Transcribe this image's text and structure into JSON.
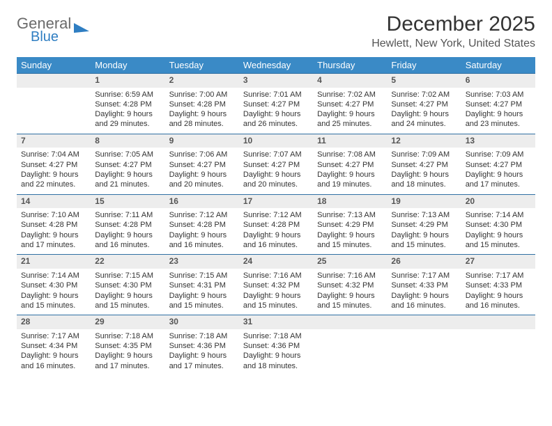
{
  "logo": {
    "word1": "General",
    "word2": "Blue"
  },
  "title": "December 2025",
  "location": "Hewlett, New York, United States",
  "colors": {
    "header_bg": "#3a8ac6",
    "brand_blue": "#2f7ec2",
    "daynum_bg": "#ededed",
    "border": "#2f6fa3"
  },
  "weekdays": [
    "Sunday",
    "Monday",
    "Tuesday",
    "Wednesday",
    "Thursday",
    "Friday",
    "Saturday"
  ],
  "weeks": [
    {
      "nums": [
        "",
        "1",
        "2",
        "3",
        "4",
        "5",
        "6"
      ],
      "cells": [
        {
          "lines": []
        },
        {
          "lines": [
            "Sunrise: 6:59 AM",
            "Sunset: 4:28 PM",
            "Daylight: 9 hours",
            "and 29 minutes."
          ]
        },
        {
          "lines": [
            "Sunrise: 7:00 AM",
            "Sunset: 4:28 PM",
            "Daylight: 9 hours",
            "and 28 minutes."
          ]
        },
        {
          "lines": [
            "Sunrise: 7:01 AM",
            "Sunset: 4:27 PM",
            "Daylight: 9 hours",
            "and 26 minutes."
          ]
        },
        {
          "lines": [
            "Sunrise: 7:02 AM",
            "Sunset: 4:27 PM",
            "Daylight: 9 hours",
            "and 25 minutes."
          ]
        },
        {
          "lines": [
            "Sunrise: 7:02 AM",
            "Sunset: 4:27 PM",
            "Daylight: 9 hours",
            "and 24 minutes."
          ]
        },
        {
          "lines": [
            "Sunrise: 7:03 AM",
            "Sunset: 4:27 PM",
            "Daylight: 9 hours",
            "and 23 minutes."
          ]
        }
      ]
    },
    {
      "nums": [
        "7",
        "8",
        "9",
        "10",
        "11",
        "12",
        "13"
      ],
      "cells": [
        {
          "lines": [
            "Sunrise: 7:04 AM",
            "Sunset: 4:27 PM",
            "Daylight: 9 hours",
            "and 22 minutes."
          ]
        },
        {
          "lines": [
            "Sunrise: 7:05 AM",
            "Sunset: 4:27 PM",
            "Daylight: 9 hours",
            "and 21 minutes."
          ]
        },
        {
          "lines": [
            "Sunrise: 7:06 AM",
            "Sunset: 4:27 PM",
            "Daylight: 9 hours",
            "and 20 minutes."
          ]
        },
        {
          "lines": [
            "Sunrise: 7:07 AM",
            "Sunset: 4:27 PM",
            "Daylight: 9 hours",
            "and 20 minutes."
          ]
        },
        {
          "lines": [
            "Sunrise: 7:08 AM",
            "Sunset: 4:27 PM",
            "Daylight: 9 hours",
            "and 19 minutes."
          ]
        },
        {
          "lines": [
            "Sunrise: 7:09 AM",
            "Sunset: 4:27 PM",
            "Daylight: 9 hours",
            "and 18 minutes."
          ]
        },
        {
          "lines": [
            "Sunrise: 7:09 AM",
            "Sunset: 4:27 PM",
            "Daylight: 9 hours",
            "and 17 minutes."
          ]
        }
      ]
    },
    {
      "nums": [
        "14",
        "15",
        "16",
        "17",
        "18",
        "19",
        "20"
      ],
      "cells": [
        {
          "lines": [
            "Sunrise: 7:10 AM",
            "Sunset: 4:28 PM",
            "Daylight: 9 hours",
            "and 17 minutes."
          ]
        },
        {
          "lines": [
            "Sunrise: 7:11 AM",
            "Sunset: 4:28 PM",
            "Daylight: 9 hours",
            "and 16 minutes."
          ]
        },
        {
          "lines": [
            "Sunrise: 7:12 AM",
            "Sunset: 4:28 PM",
            "Daylight: 9 hours",
            "and 16 minutes."
          ]
        },
        {
          "lines": [
            "Sunrise: 7:12 AM",
            "Sunset: 4:28 PM",
            "Daylight: 9 hours",
            "and 16 minutes."
          ]
        },
        {
          "lines": [
            "Sunrise: 7:13 AM",
            "Sunset: 4:29 PM",
            "Daylight: 9 hours",
            "and 15 minutes."
          ]
        },
        {
          "lines": [
            "Sunrise: 7:13 AM",
            "Sunset: 4:29 PM",
            "Daylight: 9 hours",
            "and 15 minutes."
          ]
        },
        {
          "lines": [
            "Sunrise: 7:14 AM",
            "Sunset: 4:30 PM",
            "Daylight: 9 hours",
            "and 15 minutes."
          ]
        }
      ]
    },
    {
      "nums": [
        "21",
        "22",
        "23",
        "24",
        "25",
        "26",
        "27"
      ],
      "cells": [
        {
          "lines": [
            "Sunrise: 7:14 AM",
            "Sunset: 4:30 PM",
            "Daylight: 9 hours",
            "and 15 minutes."
          ]
        },
        {
          "lines": [
            "Sunrise: 7:15 AM",
            "Sunset: 4:30 PM",
            "Daylight: 9 hours",
            "and 15 minutes."
          ]
        },
        {
          "lines": [
            "Sunrise: 7:15 AM",
            "Sunset: 4:31 PM",
            "Daylight: 9 hours",
            "and 15 minutes."
          ]
        },
        {
          "lines": [
            "Sunrise: 7:16 AM",
            "Sunset: 4:32 PM",
            "Daylight: 9 hours",
            "and 15 minutes."
          ]
        },
        {
          "lines": [
            "Sunrise: 7:16 AM",
            "Sunset: 4:32 PM",
            "Daylight: 9 hours",
            "and 15 minutes."
          ]
        },
        {
          "lines": [
            "Sunrise: 7:17 AM",
            "Sunset: 4:33 PM",
            "Daylight: 9 hours",
            "and 16 minutes."
          ]
        },
        {
          "lines": [
            "Sunrise: 7:17 AM",
            "Sunset: 4:33 PM",
            "Daylight: 9 hours",
            "and 16 minutes."
          ]
        }
      ]
    },
    {
      "nums": [
        "28",
        "29",
        "30",
        "31",
        "",
        "",
        ""
      ],
      "cells": [
        {
          "lines": [
            "Sunrise: 7:17 AM",
            "Sunset: 4:34 PM",
            "Daylight: 9 hours",
            "and 16 minutes."
          ]
        },
        {
          "lines": [
            "Sunrise: 7:18 AM",
            "Sunset: 4:35 PM",
            "Daylight: 9 hours",
            "and 17 minutes."
          ]
        },
        {
          "lines": [
            "Sunrise: 7:18 AM",
            "Sunset: 4:36 PM",
            "Daylight: 9 hours",
            "and 17 minutes."
          ]
        },
        {
          "lines": [
            "Sunrise: 7:18 AM",
            "Sunset: 4:36 PM",
            "Daylight: 9 hours",
            "and 18 minutes."
          ]
        },
        {
          "lines": []
        },
        {
          "lines": []
        },
        {
          "lines": []
        }
      ]
    }
  ]
}
